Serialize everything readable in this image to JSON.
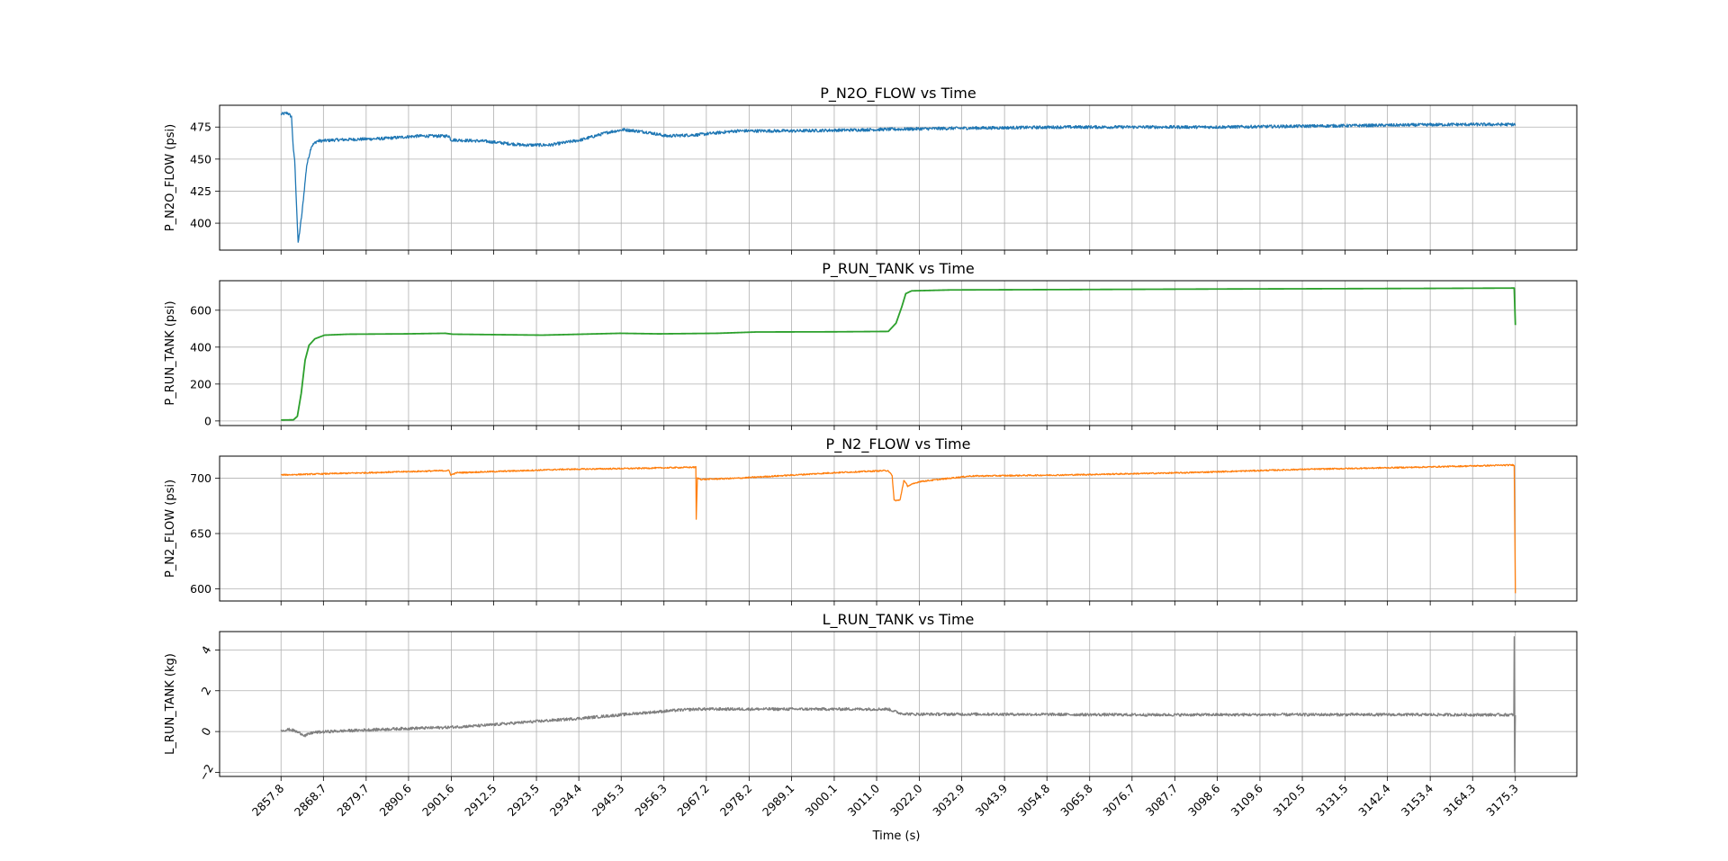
{
  "chart_data": [
    {
      "type": "line",
      "title": "P_N2O_FLOW vs Time",
      "ylabel": "P_N2O_FLOW (psi)",
      "xlabel": "",
      "color": "#1f77b4",
      "ylim": [
        379,
        492
      ],
      "yticks": [
        400,
        425,
        450,
        475
      ],
      "ytick_rotation": 0,
      "noise": 1.2,
      "grid": true,
      "points": [
        [
          2857.8,
          485
        ],
        [
          2859.5,
          486
        ],
        [
          2860.5,
          483
        ],
        [
          2861.0,
          456
        ],
        [
          2861.3,
          450
        ],
        [
          2862.2,
          384
        ],
        [
          2863.2,
          408
        ],
        [
          2864.4,
          445
        ],
        [
          2865.6,
          460
        ],
        [
          2867.0,
          464
        ],
        [
          2872.0,
          465
        ],
        [
          2884.0,
          466
        ],
        [
          2893.0,
          468
        ],
        [
          2901.0,
          468
        ],
        [
          2901.5,
          465
        ],
        [
          2910.0,
          464
        ],
        [
          2920.0,
          461
        ],
        [
          2927.0,
          461
        ],
        [
          2935.0,
          465
        ],
        [
          2942.0,
          471
        ],
        [
          2946.0,
          473
        ],
        [
          2952.0,
          471
        ],
        [
          2957.0,
          468
        ],
        [
          2965.0,
          469
        ],
        [
          2975.0,
          472
        ],
        [
          2990.0,
          472
        ],
        [
          3010.0,
          473
        ],
        [
          3030.0,
          474
        ],
        [
          3060.0,
          475
        ],
        [
          3100.0,
          475
        ],
        [
          3130.0,
          476
        ],
        [
          3160.0,
          477
        ],
        [
          3175.3,
          477
        ]
      ]
    },
    {
      "type": "line",
      "title": "P_RUN_TANK vs Time",
      "ylabel": "P_RUN_TANK (psi)",
      "xlabel": "",
      "color": "#2ca02c",
      "ylim": [
        -25,
        760
      ],
      "yticks": [
        0,
        200,
        400,
        600
      ],
      "ytick_rotation": 0,
      "noise": 0,
      "grid": true,
      "points": [
        [
          2857.8,
          5
        ],
        [
          2861.0,
          6
        ],
        [
          2862.0,
          25
        ],
        [
          2863.0,
          150
        ],
        [
          2864.0,
          330
        ],
        [
          2865.0,
          410
        ],
        [
          2866.5,
          445
        ],
        [
          2869.0,
          465
        ],
        [
          2875.0,
          470
        ],
        [
          2890.0,
          472
        ],
        [
          2900.0,
          475
        ],
        [
          2902.0,
          470
        ],
        [
          2925.0,
          465
        ],
        [
          2945.0,
          475
        ],
        [
          2955.0,
          472
        ],
        [
          2970.0,
          475
        ],
        [
          2980.0,
          482
        ],
        [
          3000.0,
          483
        ],
        [
          3014.0,
          485
        ],
        [
          3016.0,
          530
        ],
        [
          3017.5,
          620
        ],
        [
          3018.5,
          690
        ],
        [
          3020.0,
          705
        ],
        [
          3030.0,
          710
        ],
        [
          3060.0,
          712
        ],
        [
          3100.0,
          715
        ],
        [
          3150.0,
          718
        ],
        [
          3174.9,
          720
        ],
        [
          3175.0,
          720
        ],
        [
          3175.3,
          520
        ]
      ]
    },
    {
      "type": "line",
      "title": "P_N2_FLOW vs Time",
      "ylabel": "P_N2_FLOW (psi)",
      "xlabel": "",
      "color": "#ff7f0e",
      "ylim": [
        589,
        720
      ],
      "yticks": [
        600,
        650,
        700
      ],
      "ytick_rotation": 0,
      "noise": 0.6,
      "grid": true,
      "points": [
        [
          2857.8,
          703
        ],
        [
          2880.0,
          705
        ],
        [
          2901.0,
          707
        ],
        [
          2901.5,
          703
        ],
        [
          2903.0,
          705
        ],
        [
          2930.0,
          708
        ],
        [
          2950.0,
          709
        ],
        [
          2964.5,
          710
        ],
        [
          2964.6,
          663
        ],
        [
          2964.9,
          700
        ],
        [
          2966.0,
          699
        ],
        [
          2975.0,
          700
        ],
        [
          2990.0,
          703
        ],
        [
          3000.0,
          705
        ],
        [
          3014.0,
          707
        ],
        [
          3015.0,
          702
        ],
        [
          3015.5,
          680
        ],
        [
          3017.0,
          680
        ],
        [
          3018.0,
          698
        ],
        [
          3019.0,
          693
        ],
        [
          3022.0,
          697
        ],
        [
          3035.0,
          702
        ],
        [
          3060.0,
          703
        ],
        [
          3090.0,
          705
        ],
        [
          3120.0,
          708
        ],
        [
          3150.0,
          710
        ],
        [
          3175.0,
          712
        ],
        [
          3175.3,
          596
        ]
      ]
    },
    {
      "type": "line",
      "title": "L_RUN_TANK vs Time",
      "ylabel": "L_RUN_TANK (kg)",
      "xlabel": "Time (s)",
      "color": "#7f7f7f",
      "ylim": [
        -2.2,
        4.9
      ],
      "yticks": [
        -2,
        0,
        2,
        4
      ],
      "ytick_rotation": -60,
      "noise": 0.07,
      "grid": true,
      "points": [
        [
          2857.8,
          0.05
        ],
        [
          2860.0,
          0.1
        ],
        [
          2861.0,
          0.05
        ],
        [
          2863.0,
          -0.1
        ],
        [
          2864.0,
          -0.2
        ],
        [
          2866.0,
          -0.05
        ],
        [
          2870.0,
          0.0
        ],
        [
          2880.0,
          0.08
        ],
        [
          2890.0,
          0.15
        ],
        [
          2900.0,
          0.2
        ],
        [
          2910.0,
          0.3
        ],
        [
          2920.0,
          0.45
        ],
        [
          2935.0,
          0.65
        ],
        [
          2950.0,
          0.9
        ],
        [
          2960.0,
          1.05
        ],
        [
          2965.0,
          1.1
        ],
        [
          2975.0,
          1.1
        ],
        [
          3000.0,
          1.1
        ],
        [
          3014.0,
          1.1
        ],
        [
          3017.0,
          0.9
        ],
        [
          3020.0,
          0.85
        ],
        [
          3040.0,
          0.85
        ],
        [
          3080.0,
          0.82
        ],
        [
          3130.0,
          0.83
        ],
        [
          3174.9,
          0.82
        ],
        [
          3175.0,
          4.6
        ],
        [
          3175.1,
          -2.0
        ],
        [
          3175.3,
          0.8
        ]
      ]
    }
  ],
  "shared_x": {
    "label": "Time (s)",
    "range": [
      2842.0,
      3191.1
    ],
    "ticks": [
      2857.8,
      2868.7,
      2879.7,
      2890.6,
      2901.6,
      2912.5,
      2923.5,
      2934.4,
      2945.3,
      2956.3,
      2967.2,
      2978.2,
      2989.1,
      3000.1,
      3011.0,
      3022.0,
      3032.9,
      3043.9,
      3054.8,
      3065.8,
      3076.7,
      3087.7,
      3098.6,
      3109.6,
      3120.5,
      3131.5,
      3142.4,
      3153.4,
      3164.3,
      3175.3
    ],
    "tick_rotation": -45
  }
}
